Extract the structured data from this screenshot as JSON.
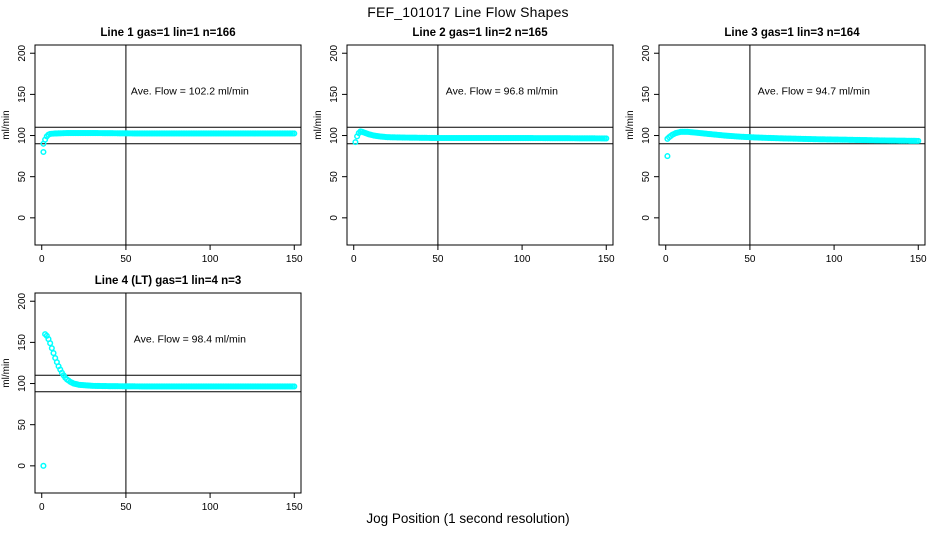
{
  "figure": {
    "title": "FEF_101017  Line Flow Shapes",
    "xlabel": "Jog Position (1 second resolution)",
    "ylabel": "ml/min",
    "point_color": "#00FFFF",
    "line_color": "#000000",
    "background_color": "#FFFFFF"
  },
  "chart_data": [
    {
      "type": "scatter",
      "title": "Line 1 gas=1 lin=1 n=166",
      "n": 166,
      "ave_flow_ml_min": 102.2,
      "annotation": "Ave. Flow =  102.2  ml/min",
      "xlabel": "Jog Position (1 second resolution)",
      "ylabel": "ml/min",
      "xlim": [
        0,
        150
      ],
      "ylim": [
        0,
        200
      ],
      "x_ticks": [
        0,
        50,
        100,
        150
      ],
      "y_ticks": [
        0,
        50,
        100,
        150,
        200
      ],
      "reference_hlines": [
        90,
        110
      ],
      "reference_vline": 50,
      "series_keypoints": [
        [
          1,
          90
        ],
        [
          2,
          95
        ],
        [
          3,
          99
        ],
        [
          4,
          101
        ],
        [
          5,
          102
        ],
        [
          8,
          102.5
        ],
        [
          15,
          103
        ],
        [
          30,
          103
        ],
        [
          60,
          102.5
        ],
        [
          100,
          102.5
        ],
        [
          150,
          102.5
        ]
      ],
      "outlier_points": [
        [
          1,
          80
        ]
      ]
    },
    {
      "type": "scatter",
      "title": "Line 2 gas=1 lin=2 n=165",
      "n": 165,
      "ave_flow_ml_min": 96.8,
      "annotation": "Ave. Flow =  96.8  ml/min",
      "xlabel": "Jog Position (1 second resolution)",
      "ylabel": "ml/min",
      "xlim": [
        0,
        150
      ],
      "ylim": [
        0,
        200
      ],
      "x_ticks": [
        0,
        50,
        100,
        150
      ],
      "y_ticks": [
        0,
        50,
        100,
        150,
        200
      ],
      "reference_hlines": [
        90,
        110
      ],
      "reference_vline": 50,
      "series_keypoints": [
        [
          1,
          92
        ],
        [
          2,
          99
        ],
        [
          3,
          103
        ],
        [
          4,
          105
        ],
        [
          5,
          104.5
        ],
        [
          7,
          103
        ],
        [
          9,
          101.5
        ],
        [
          12,
          100
        ],
        [
          15,
          99
        ],
        [
          20,
          98
        ],
        [
          30,
          97.5
        ],
        [
          50,
          97
        ],
        [
          80,
          97
        ],
        [
          120,
          96.8
        ],
        [
          150,
          96.5
        ]
      ],
      "outlier_points": []
    },
    {
      "type": "scatter",
      "title": "Line 3 gas=1 lin=3 n=164",
      "n": 164,
      "ave_flow_ml_min": 94.7,
      "annotation": "Ave. Flow =  94.7  ml/min",
      "xlabel": "Jog Position (1 second resolution)",
      "ylabel": "ml/min",
      "xlim": [
        0,
        150
      ],
      "ylim": [
        0,
        200
      ],
      "x_ticks": [
        0,
        50,
        100,
        150
      ],
      "y_ticks": [
        0,
        50,
        100,
        150,
        200
      ],
      "reference_hlines": [
        90,
        110
      ],
      "reference_vline": 50,
      "series_keypoints": [
        [
          1,
          96
        ],
        [
          2,
          98
        ],
        [
          4,
          101
        ],
        [
          6,
          103
        ],
        [
          9,
          104.5
        ],
        [
          13,
          104.5
        ],
        [
          18,
          103.5
        ],
        [
          25,
          102
        ],
        [
          35,
          100
        ],
        [
          45,
          98.5
        ],
        [
          55,
          97.5
        ],
        [
          70,
          96.5
        ],
        [
          90,
          95.5
        ],
        [
          110,
          94.8
        ],
        [
          130,
          94
        ],
        [
          150,
          93.5
        ]
      ],
      "outlier_points": [
        [
          1,
          75
        ]
      ]
    },
    {
      "type": "scatter",
      "title": "Line 4 (LT) gas=1 lin=4 n=3",
      "n": 3,
      "ave_flow_ml_min": 98.4,
      "annotation": "Ave. Flow =  98.4  ml/min",
      "xlabel": "Jog Position (1 second resolution)",
      "ylabel": "ml/min",
      "xlim": [
        0,
        150
      ],
      "ylim": [
        0,
        200
      ],
      "x_ticks": [
        0,
        50,
        100,
        150
      ],
      "y_ticks": [
        0,
        50,
        100,
        150,
        200
      ],
      "reference_hlines": [
        90,
        110
      ],
      "reference_vline": 50,
      "series_keypoints": [
        [
          2,
          160
        ],
        [
          3,
          158
        ],
        [
          4,
          154
        ],
        [
          5,
          149
        ],
        [
          6,
          143
        ],
        [
          7,
          137
        ],
        [
          8,
          131
        ],
        [
          9,
          126
        ],
        [
          10,
          121
        ],
        [
          11,
          117
        ],
        [
          12,
          113
        ],
        [
          13,
          110
        ],
        [
          14,
          107
        ],
        [
          15,
          105
        ],
        [
          16,
          103.5
        ],
        [
          17,
          102
        ],
        [
          18,
          101
        ],
        [
          19,
          100
        ],
        [
          20,
          99.5
        ],
        [
          22,
          98.5
        ],
        [
          25,
          98
        ],
        [
          30,
          97.2
        ],
        [
          40,
          96.8
        ],
        [
          60,
          96.5
        ],
        [
          90,
          96.5
        ],
        [
          120,
          96.5
        ],
        [
          150,
          96.5
        ]
      ],
      "outlier_points": [
        [
          1,
          0
        ]
      ]
    }
  ]
}
